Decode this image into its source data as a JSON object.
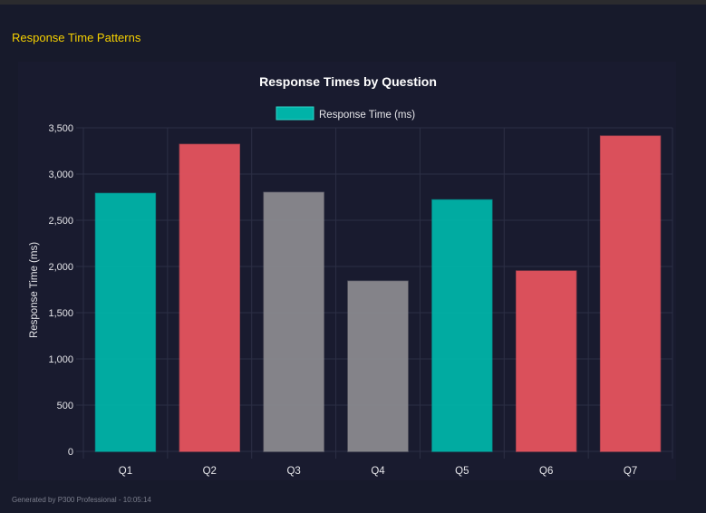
{
  "section_title": "Response Time Patterns",
  "footer": "Generated by P300 Professional - 10:05:14",
  "chart_data": {
    "type": "bar",
    "title": "Response Times by Question",
    "legend": {
      "position": "top",
      "label": "Response Time (ms)",
      "swatch_color": "#00b3a8"
    },
    "categories": [
      "Q1",
      "Q2",
      "Q3",
      "Q4",
      "Q5",
      "Q6",
      "Q7"
    ],
    "series": [
      {
        "name": "Response Time (ms)",
        "values": [
          2790,
          3320,
          2800,
          1840,
          2720,
          1950,
          3410
        ]
      }
    ],
    "bar_colors": [
      "#00b3a8",
      "#e5535e",
      "#8a898e",
      "#8a898e",
      "#00b3a8",
      "#e5535e",
      "#e5535e"
    ],
    "xlabel": "",
    "ylabel": "Response Time (ms)",
    "ylim": [
      0,
      3500
    ],
    "yticks": [
      "0",
      "500",
      "1,000",
      "1,500",
      "2,000",
      "2,500",
      "3,000",
      "3,500"
    ],
    "grid": true
  }
}
